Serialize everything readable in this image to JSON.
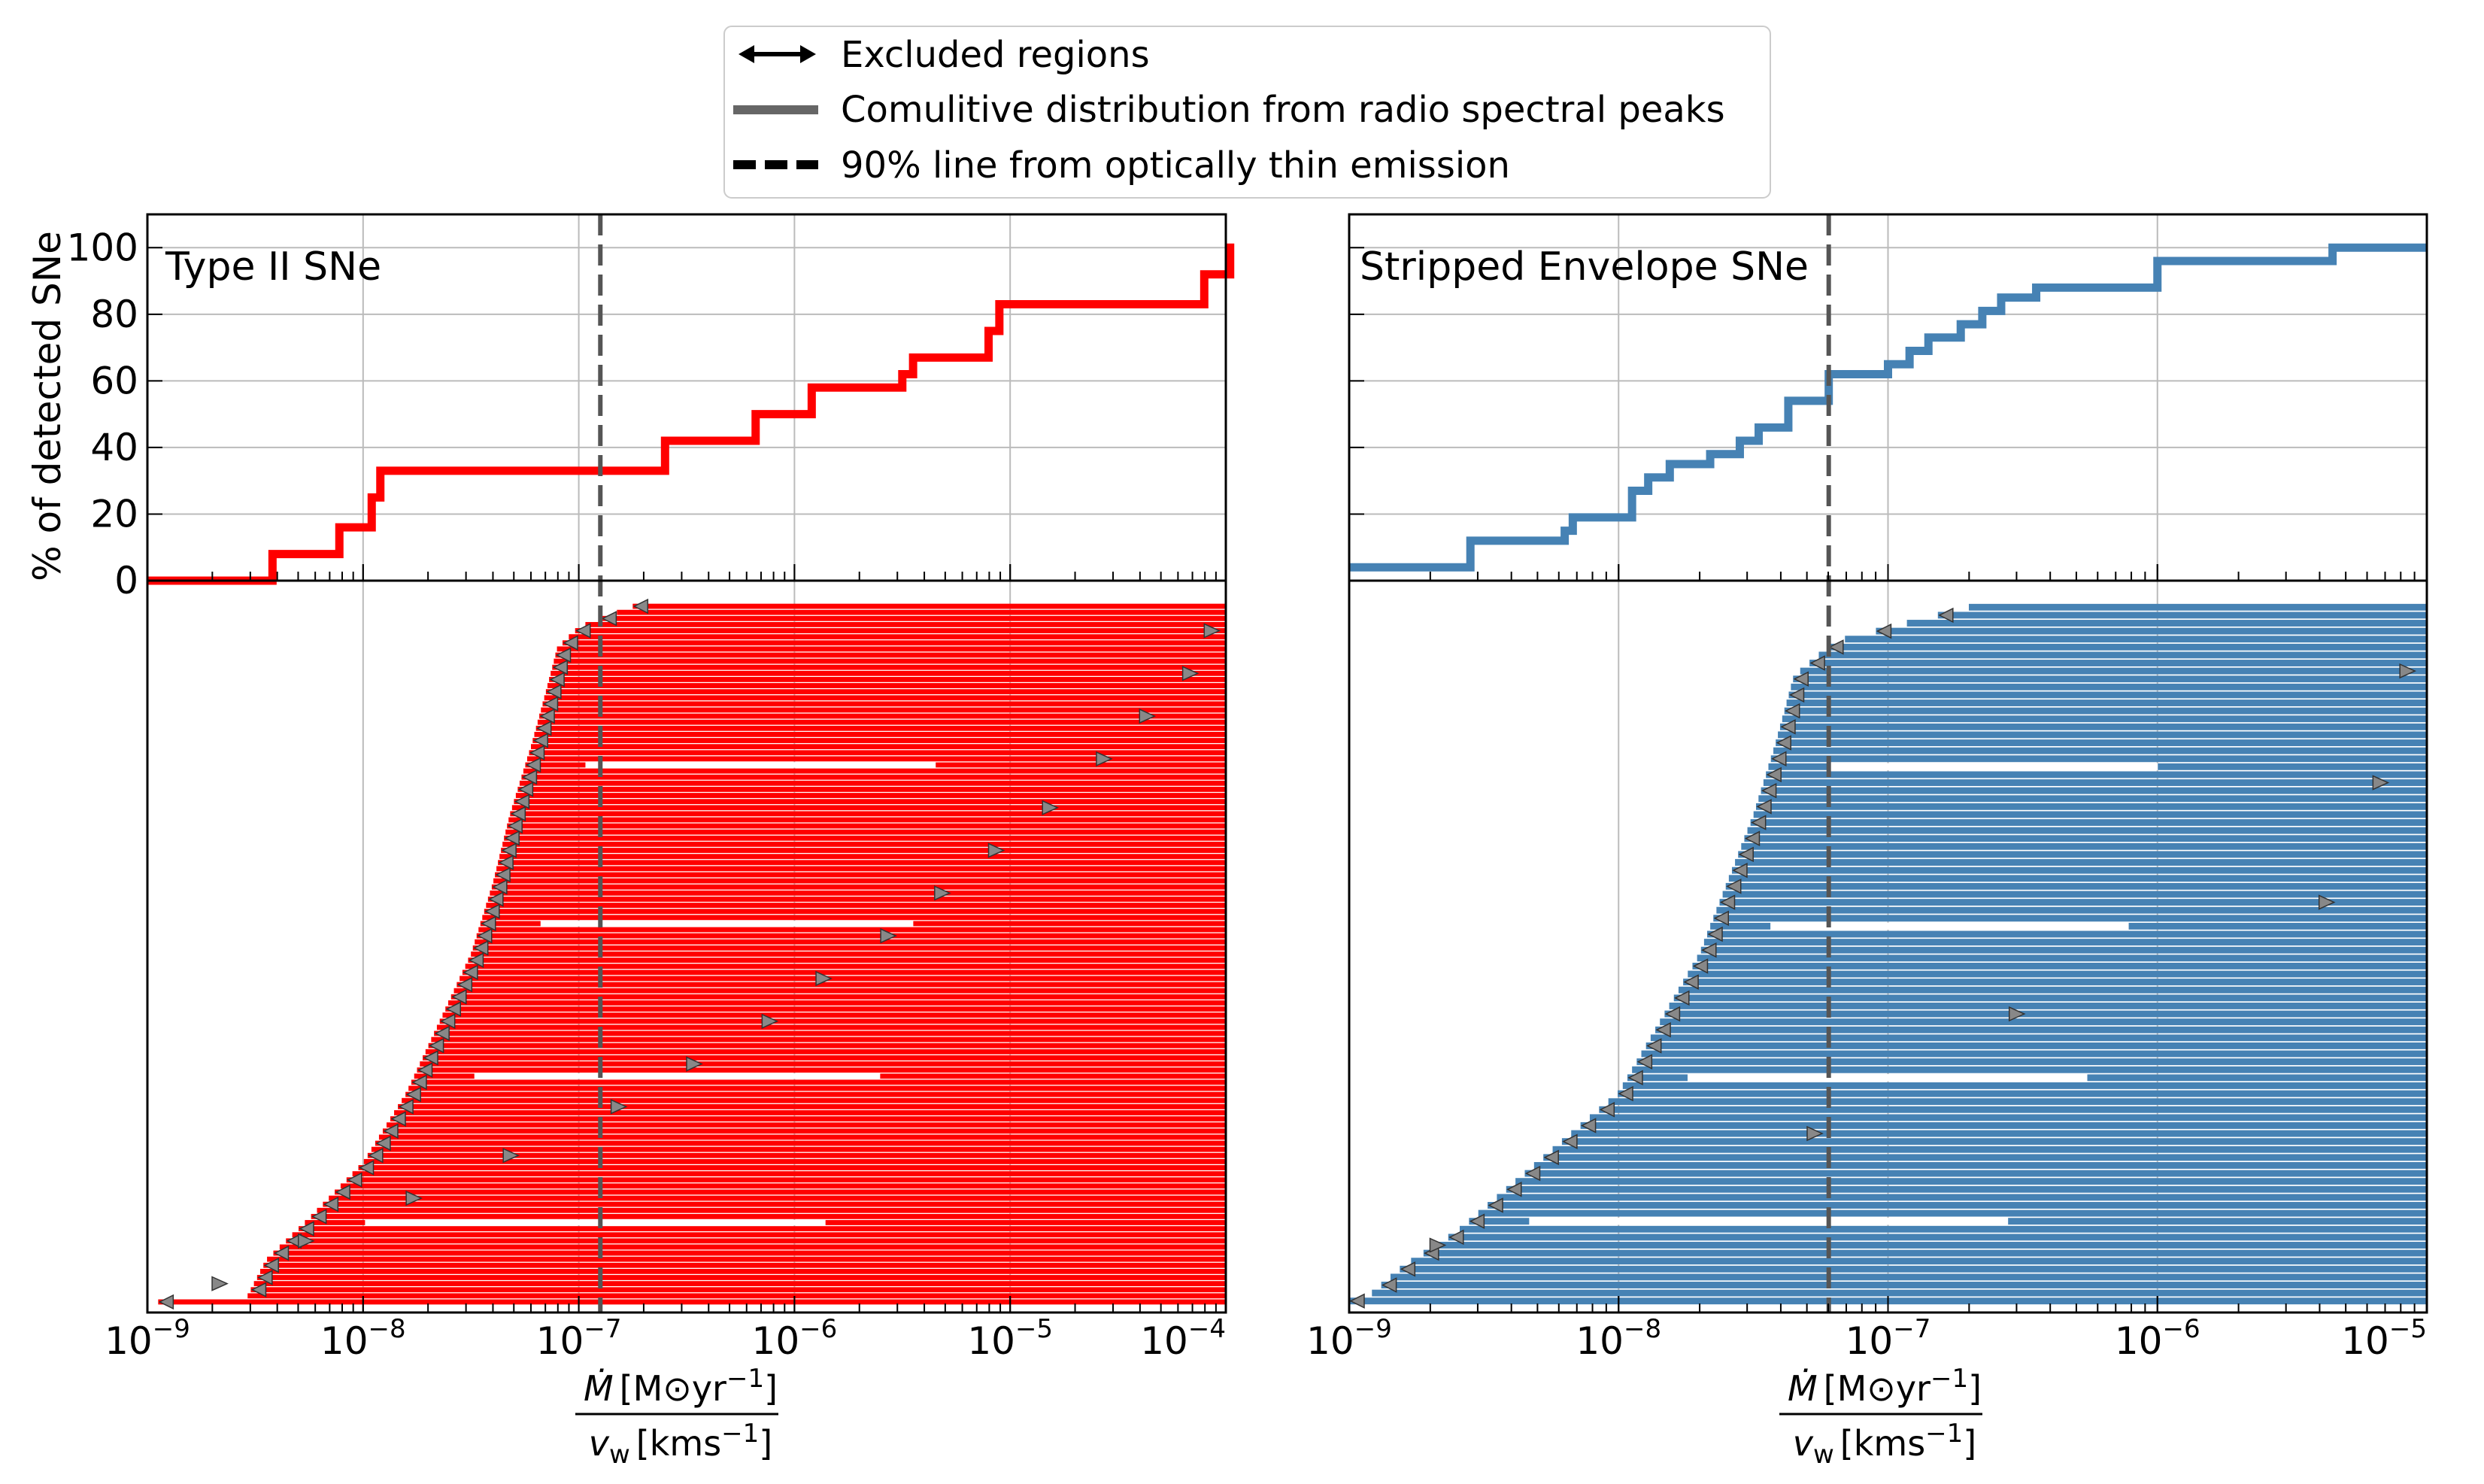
{
  "legend": {
    "items": [
      {
        "label": "Excluded regions",
        "kind": "double-arrow"
      },
      {
        "label": "Comulitive distribution from radio spectral peaks",
        "kind": "solid-gray-line"
      },
      {
        "label": "90% line from optically thin emission",
        "kind": "dashed-black-line"
      }
    ]
  },
  "y_axis_label": "% of detected SNe",
  "x_label": {
    "num_prefix": "Ṁ",
    "num_unit": "[M⊙yr",
    "num_exp": "−1",
    "num_close": "]",
    "den_prefix": "v",
    "den_sub": "w",
    "den_unit": "[kms",
    "den_exp": "−1",
    "den_close": "]"
  },
  "chart_data": [
    {
      "type": "line",
      "name": "type-ii",
      "title": "Type II SNe",
      "color": "#ff0000",
      "xscale": "log",
      "xlim_exp": [
        -9,
        -4
      ],
      "ylim": [
        0,
        110
      ],
      "yticks": [
        0,
        20,
        40,
        60,
        80,
        100
      ],
      "xtick_labels": [
        "10",
        "10",
        "10",
        "10",
        "10",
        "10"
      ],
      "xtick_exps": [
        "−9",
        "−8",
        "−7",
        "−6",
        "−5",
        "−4"
      ],
      "threshold_90_exp": -6.9,
      "cdf_log_x": [
        -9.0,
        -8.42,
        -8.42,
        -8.11,
        -8.11,
        -7.96,
        -7.96,
        -7.92,
        -7.92,
        -6.6,
        -6.6,
        -6.18,
        -6.18,
        -5.92,
        -5.92,
        -5.5,
        -5.5,
        -5.45,
        -5.45,
        -5.1,
        -5.1,
        -5.05,
        -5.05,
        -4.1,
        -4.1,
        -3.98,
        -3.98,
        -4.0
      ],
      "cdf_y": [
        0,
        0,
        8,
        8,
        16,
        16,
        25,
        25,
        33,
        33,
        42,
        42,
        50,
        50,
        58,
        58,
        62,
        62,
        67,
        67,
        75,
        75,
        83,
        83,
        92,
        92,
        100,
        100
      ],
      "n_limits": 115,
      "limit_curve_logx": [
        [
          0,
          -8.55
        ],
        [
          0.06,
          -8.45
        ],
        [
          0.12,
          -8.25
        ],
        [
          0.2,
          -8.0
        ],
        [
          0.3,
          -7.8
        ],
        [
          0.4,
          -7.65
        ],
        [
          0.5,
          -7.5
        ],
        [
          0.6,
          -7.4
        ],
        [
          0.7,
          -7.32
        ],
        [
          0.8,
          -7.22
        ],
        [
          0.88,
          -7.15
        ],
        [
          0.94,
          -7.1
        ],
        [
          0.97,
          -7.0
        ],
        [
          1.0,
          -6.75
        ]
      ],
      "limit_extremes_logx": [
        -8.95,
        -3.99
      ],
      "arrow_markers_logx": [
        -8.7,
        -8.3,
        -7.8,
        -7.35,
        -6.85,
        -6.5,
        -6.15,
        -5.9,
        -5.6,
        -5.35,
        -5.1,
        -4.85,
        -4.6,
        -4.4,
        -4.2,
        -4.1
      ]
    },
    {
      "type": "line",
      "name": "stripped-envelope",
      "title": "Stripped Envelope SNe",
      "color": "#4682b4",
      "xscale": "log",
      "xlim_exp": [
        -9,
        -5
      ],
      "ylim": [
        0,
        110
      ],
      "yticks": [
        0,
        20,
        40,
        60,
        80,
        100
      ],
      "xtick_labels": [
        "10",
        "10",
        "10",
        "10",
        "10"
      ],
      "xtick_exps": [
        "−9",
        "−8",
        "−7",
        "−6",
        "−5"
      ],
      "threshold_90_exp": -7.22,
      "cdf_log_x": [
        -9.0,
        -8.55,
        -8.55,
        -8.2,
        -8.2,
        -8.17,
        -8.17,
        -7.95,
        -7.95,
        -7.89,
        -7.89,
        -7.81,
        -7.81,
        -7.66,
        -7.66,
        -7.55,
        -7.55,
        -7.48,
        -7.48,
        -7.37,
        -7.37,
        -7.22,
        -7.22,
        -7.0,
        -7.0,
        -6.92,
        -6.92,
        -6.85,
        -6.85,
        -6.73,
        -6.73,
        -6.65,
        -6.65,
        -6.58,
        -6.58,
        -6.45,
        -6.45,
        -6.0,
        -6.0,
        -5.35,
        -5.35,
        -5.0
      ],
      "cdf_y": [
        4,
        4,
        12,
        12,
        15,
        15,
        19,
        19,
        27,
        27,
        31,
        31,
        35,
        35,
        38,
        38,
        42,
        42,
        46,
        46,
        54,
        54,
        62,
        62,
        65,
        65,
        69,
        69,
        73,
        73,
        77,
        77,
        81,
        81,
        85,
        85,
        88,
        88,
        96,
        96,
        100,
        100
      ],
      "n_limits": 88,
      "limit_curve_logx": [
        [
          0,
          -8.95
        ],
        [
          0.05,
          -8.8
        ],
        [
          0.1,
          -8.6
        ],
        [
          0.2,
          -8.3
        ],
        [
          0.3,
          -8.0
        ],
        [
          0.4,
          -7.85
        ],
        [
          0.5,
          -7.7
        ],
        [
          0.6,
          -7.6
        ],
        [
          0.7,
          -7.5
        ],
        [
          0.8,
          -7.42
        ],
        [
          0.9,
          -7.35
        ],
        [
          0.95,
          -7.2
        ],
        [
          1.0,
          -6.7
        ]
      ],
      "limit_extremes_logx": [
        -9.0,
        -5.0
      ],
      "arrow_markers_logx": [
        -8.7,
        -7.3,
        -6.55,
        -5.4,
        -5.2,
        -5.1
      ]
    }
  ]
}
